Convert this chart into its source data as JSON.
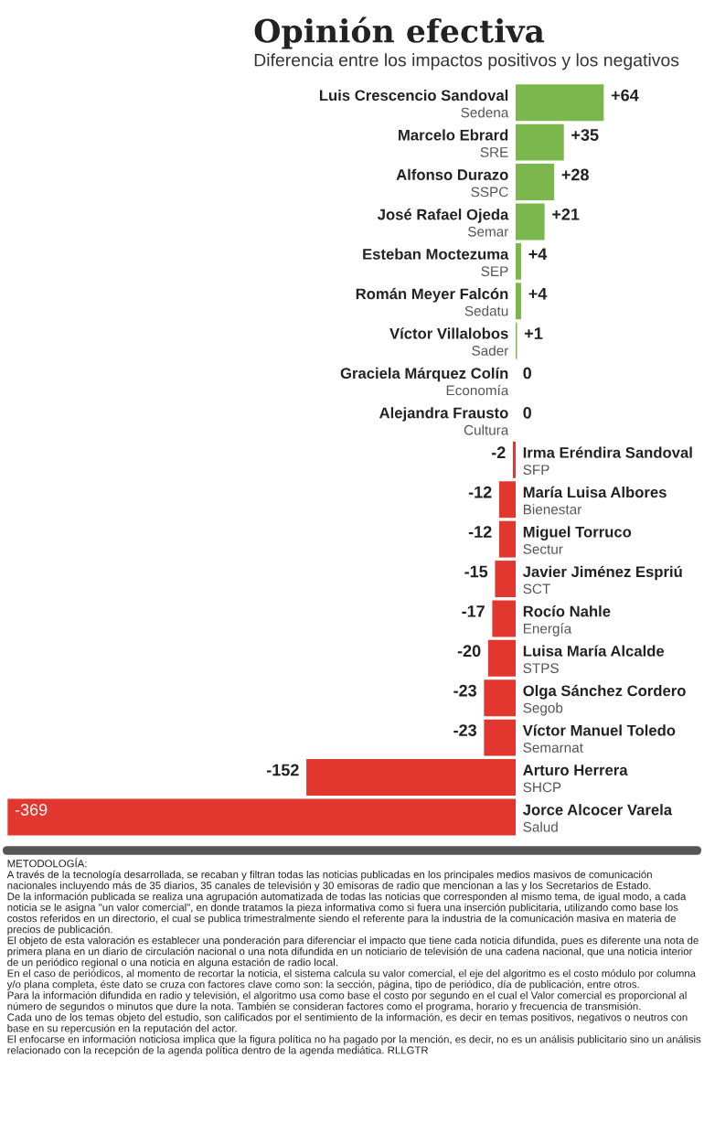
{
  "chart_data": {
    "type": "bar",
    "orientation": "horizontal",
    "title": "Opinión efectiva",
    "subtitle": "Diferencia entre los impactos positivos y los negativos",
    "categories": [
      "Luis Crescencio Sandoval\nSedena",
      "Marcelo Ebrard\nSRE",
      "Alfonso Durazo\nSSPC",
      "José Rafael Ojeda\nSemar",
      "Esteban Moctezuma\nSEP",
      "Román Meyer Falcón\nSedatu",
      "Víctor Villalobos\nSader",
      "Graciela Márquez Colín\nEconomía",
      "Alejandra Frausto\nCultura",
      "Irma Eréndira Sandoval\nSFP",
      "María Luisa Albores\nBienestar",
      "Miguel Torruco\nSectur",
      "Javier Jiménez Espriú\nSCT",
      "Rocío Nahle\nEnergía",
      "Luisa María Alcalde\nSTPS",
      "Olga Sánchez Cordero\nSegob",
      "Víctor Manuel Toledo\nSemarnat",
      "Arturo Herrera\nSHCP",
      "Jorce Alcocer Varela\nSalud"
    ],
    "values": [
      64,
      35,
      28,
      21,
      4,
      4,
      1,
      0,
      0,
      -2,
      -12,
      -12,
      -15,
      -17,
      -20,
      -23,
      -23,
      -152,
      -369
    ],
    "value_labels": [
      "+64",
      "+35",
      "+28",
      "+21",
      "+4",
      "+4",
      "+1",
      "0",
      "0",
      "-2",
      "-12",
      "-12",
      "-15",
      "-17",
      "-20",
      "-23",
      "-23",
      "-152",
      "-369"
    ],
    "colors": [
      "#7cb74e",
      "#7cb74e",
      "#7cb74e",
      "#7cb74e",
      "#7cb74e",
      "#7cb74e",
      "#7cb74e",
      "#7cb74e",
      "#7cb74e",
      "#e2372e",
      "#e2372e",
      "#e2372e",
      "#e2372e",
      "#e2372e",
      "#e2372e",
      "#e2372e",
      "#e2372e",
      "#e2372e",
      "#e2372e"
    ],
    "legend": false,
    "annotations": [
      "METODOLOGÍA:\nA través de la tecnología desarrollada, se recaban y filtran todas las noticias publicadas en los principales medios masivos de comunicación nacionales incluyendo más de 35 diarios, 35 canales de televisión y 30 emisoras de radio que mencionan a las y los Secretarios de Estado.\nDe la información publicada se realiza una agrupación automatizada de todas las noticias que corresponden al mismo tema, de igual modo, a cada noticia se le asigna \"un valor comercial\", en donde tratamos la pieza informativa como si fuera una inserción publicitaria, utilizando como base los costos referidos en un directorio, el cual se publica trimestralmente siendo el referente para la industria de la comunicación masiva en materia de precios de publicación.\nEl objeto de esta valoración es establecer una ponderación para diferenciar el impacto que tiene cada noticia difundida, pues es diferente una nota de primera plana en un diario de circulación nacional o una nota difundida en un noticiario de televisión de una cadena nacional, que una noticia interior de un periódico regional o una noticia en alguna estación de radio local.\nEn el caso de periódicos, al momento de recortar la noticia, el sistema calcula su valor comercial, el eje del algoritmo es el costo módulo por columna y/o plana completa, éste dato se cruza con factores clave como son: la sección, página, tipo de periódico, día de publicación, entre otros.\nPara la información difundida en radio y televisión, el algoritmo usa como base el costo por segundo en el cual el Valor comercial es proporcional al número de segundos o minutos que dure la nota. También se consideran factores como el programa, horario y frecuencia de transmisión.\nCada uno de los temas objeto del estudio, son calificados por el sentimiento de la información, es decir en temas positivos, negativos o neutros con base en su repercusión en la reputación del actor.\nEl enfocarse en información noticiosa implica que la figura política no ha pagado por la mención, es decir, no es un análisis publicitario sino un análisis relacionado con la recepción de la agenda política dentro de la agenda mediática. RLLGTR"
    ]
  }
}
